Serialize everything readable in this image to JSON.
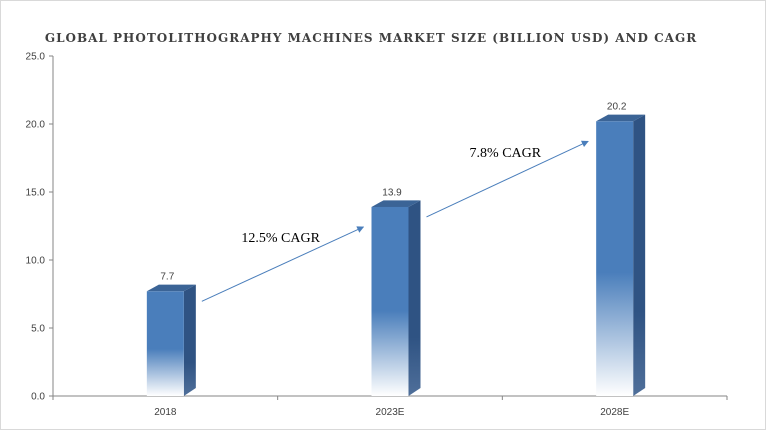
{
  "chart_data": {
    "type": "bar",
    "title": "GLOBAL PHOTOLITHOGRAPHY  MACHINES MARKET  SIZE (BILLION USD) AND CAGR",
    "categories": [
      "2018",
      "2023E",
      "2028E"
    ],
    "values": [
      7.7,
      13.9,
      20.2
    ],
    "data_labels": [
      "7.7",
      "13.9",
      "20.2"
    ],
    "xlabel": "",
    "ylabel": "",
    "ylim": [
      0,
      25
    ],
    "yticks": [
      "0.0",
      "5.0",
      "10.0",
      "15.0",
      "20.0",
      "25.0"
    ],
    "grid": false,
    "legend": "none",
    "annotations": [
      {
        "text": "12.5% CAGR",
        "from": 0,
        "to": 1
      },
      {
        "text": "7.8% CAGR",
        "from": 1,
        "to": 2
      }
    ],
    "colors": {
      "bar_front": "#4a7ebb",
      "bar_side": "#2f5383",
      "bar_top": "#3b6496",
      "arrow": "#4a7ebb",
      "axis": "#868686"
    }
  }
}
